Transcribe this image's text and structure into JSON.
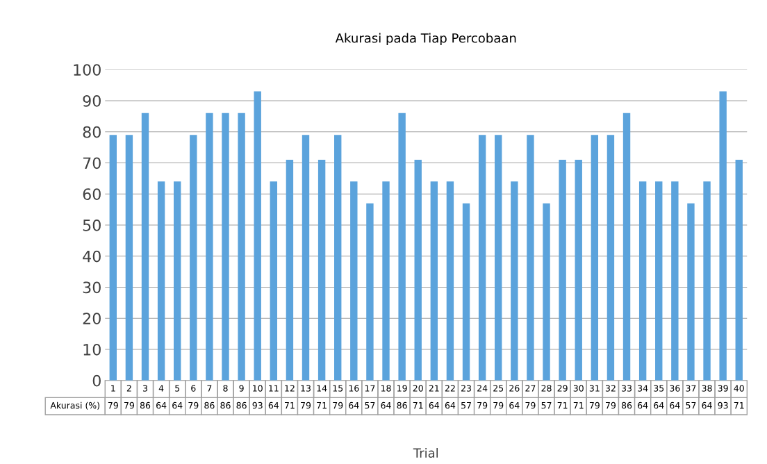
{
  "chart_data": {
    "type": "bar",
    "title": "Akurasi pada Tiap Percobaan",
    "xlabel": "Trial",
    "categories": [
      "1",
      "2",
      "3",
      "4",
      "5",
      "6",
      "7",
      "8",
      "9",
      "10",
      "11",
      "12",
      "13",
      "14",
      "15",
      "16",
      "17",
      "18",
      "19",
      "20",
      "21",
      "22",
      "23",
      "24",
      "25",
      "26",
      "27",
      "28",
      "29",
      "30",
      "31",
      "32",
      "33",
      "34",
      "35",
      "36",
      "37",
      "38",
      "39",
      "40"
    ],
    "series": [
      {
        "name": "Akurasi (%)",
        "color": "#5ba3dc",
        "values": [
          79,
          79,
          86,
          64,
          64,
          79,
          86,
          86,
          86,
          93,
          64,
          71,
          79,
          71,
          79,
          64,
          57,
          64,
          86,
          71,
          64,
          64,
          57,
          79,
          79,
          64,
          79,
          57,
          71,
          71,
          79,
          79,
          86,
          64,
          64,
          64,
          57,
          64,
          93,
          71
        ]
      }
    ],
    "ylim": [
      0,
      100
    ],
    "yticks": [
      0,
      10,
      20,
      30,
      40,
      50,
      60,
      70,
      80,
      90,
      100
    ],
    "grid": "y",
    "data_labels": true
  }
}
